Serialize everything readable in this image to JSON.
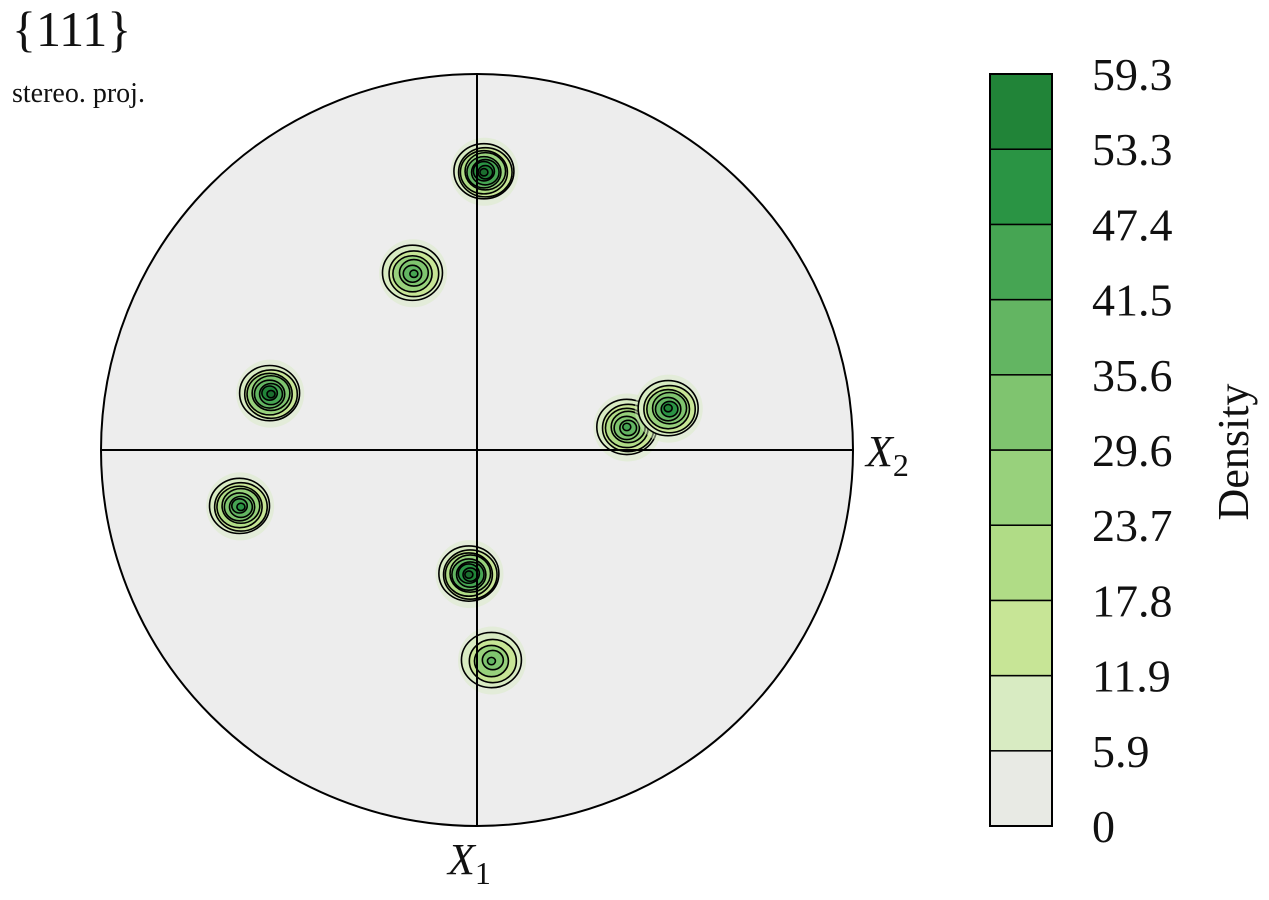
{
  "chart_data": {
    "type": "heatmap",
    "title": "{111}",
    "subtitle": "stereo. proj.",
    "axes": {
      "x2_label": "X",
      "x2_subscript": "2",
      "x1_label": "X",
      "x1_subscript": "1"
    },
    "colorbar": {
      "label": "Density",
      "ticks": [
        "0",
        "5.9",
        "11.9",
        "17.8",
        "23.7",
        "29.6",
        "35.6",
        "41.5",
        "47.4",
        "53.3",
        "59.3"
      ],
      "range": [
        0,
        59.3
      ],
      "colors": [
        "#e8eae4",
        "#d8ebc2",
        "#c7e596",
        "#b0dc86",
        "#98d17c",
        "#7fc46f",
        "#63b562",
        "#46a553",
        "#2a9444",
        "#218438",
        "#1b6e2f"
      ]
    },
    "poles": [
      {
        "u": 0.02,
        "v": -0.74,
        "peak": 59.3,
        "rings": 9
      },
      {
        "u": -0.17,
        "v": -0.47,
        "peak": 41.5,
        "rings": 6
      },
      {
        "u": -0.55,
        "v": -0.15,
        "peak": 59.3,
        "rings": 8
      },
      {
        "u": 0.4,
        "v": -0.06,
        "peak": 41.5,
        "rings": 7
      },
      {
        "u": 0.51,
        "v": -0.11,
        "peak": 53.3,
        "rings": 7
      },
      {
        "u": -0.63,
        "v": 0.15,
        "peak": 47.4,
        "rings": 8
      },
      {
        "u": -0.02,
        "v": 0.33,
        "peak": 59.3,
        "rings": 9
      },
      {
        "u": 0.04,
        "v": 0.56,
        "peak": 35.6,
        "rings": 5
      }
    ]
  }
}
